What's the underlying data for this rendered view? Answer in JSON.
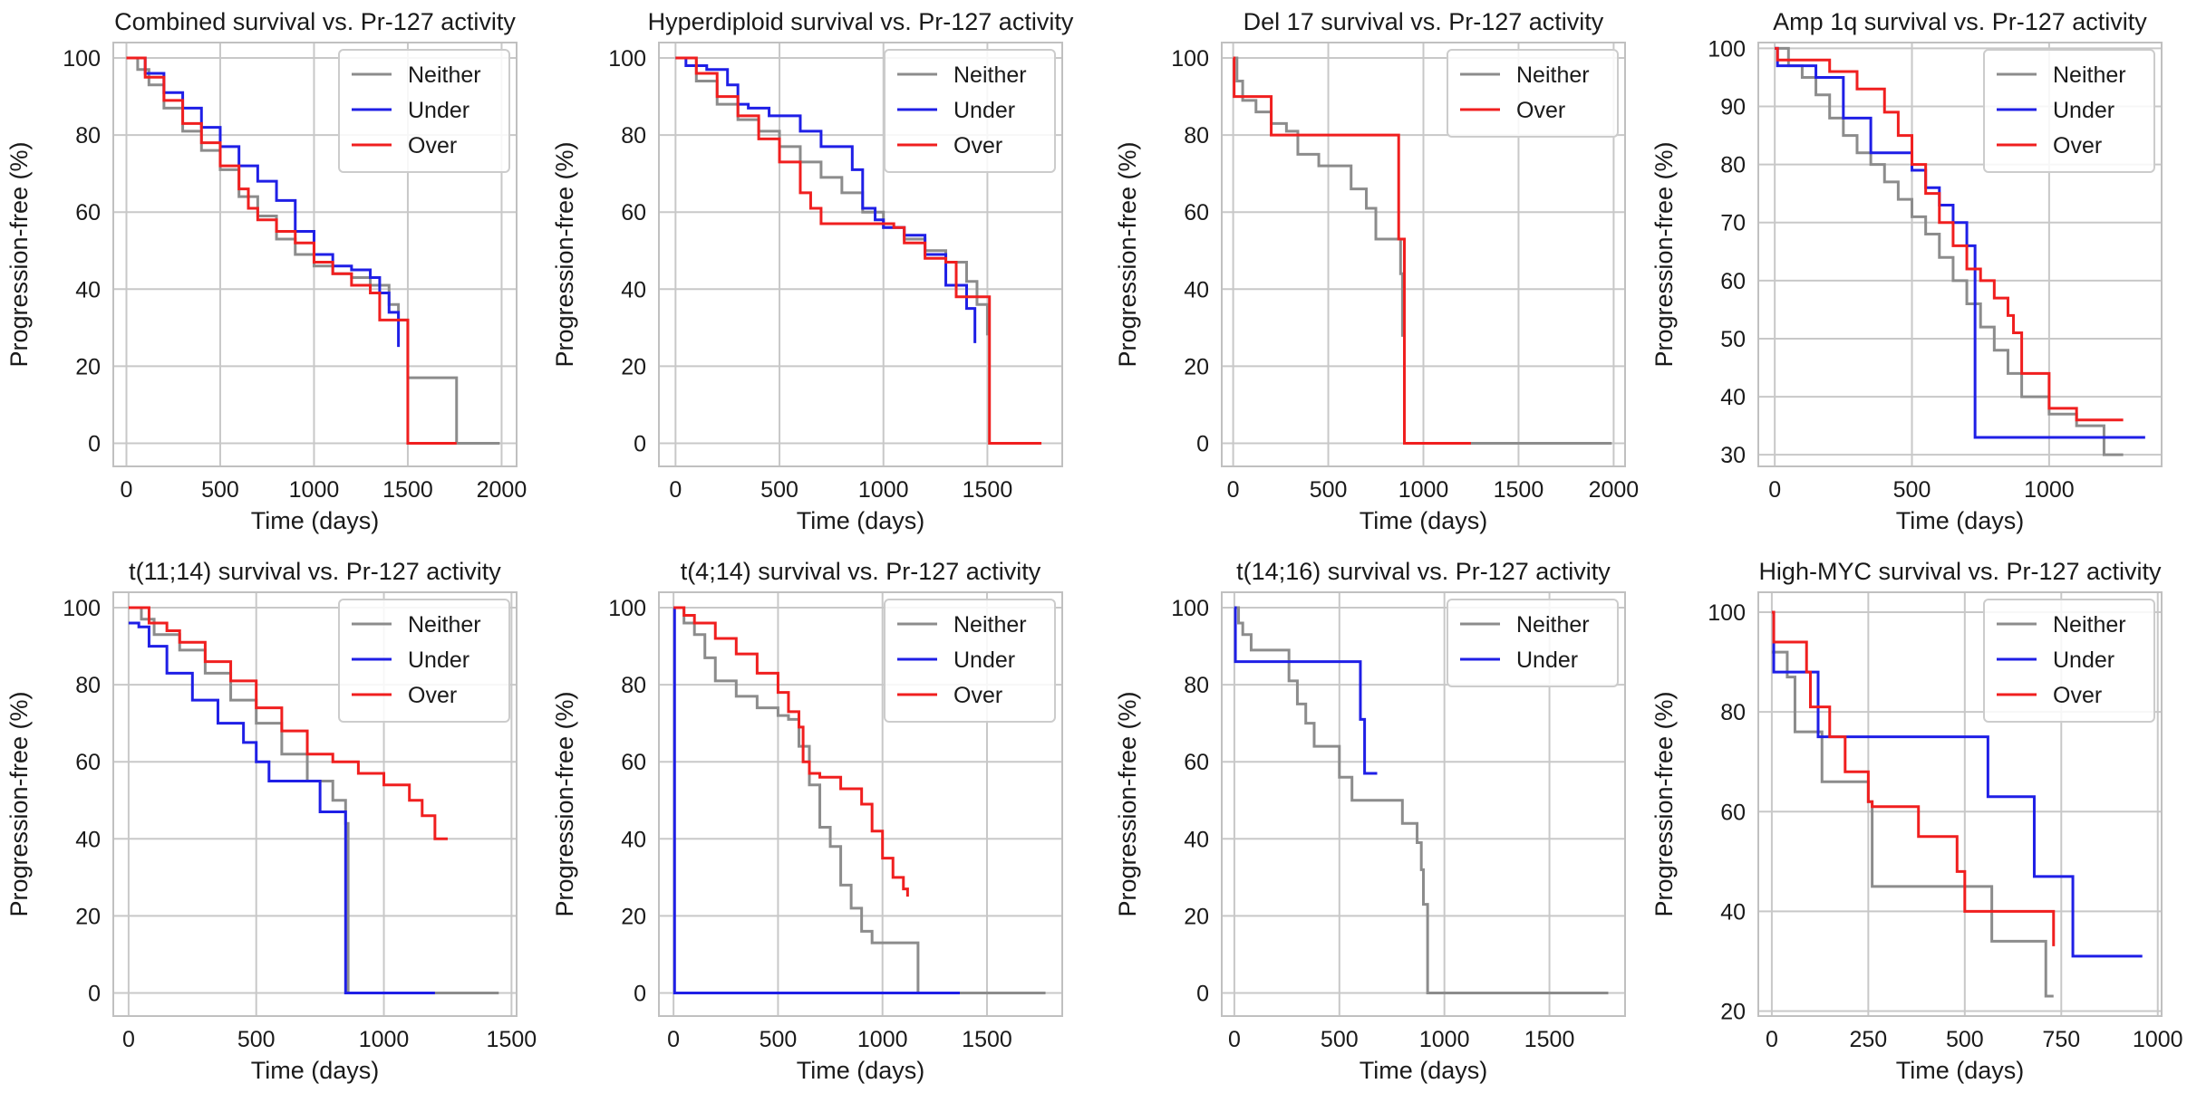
{
  "figure": {
    "title": ""
  },
  "colors": {
    "Neither": "#8c8c8c",
    "Under": "#1f1fe6",
    "Over": "#f01f1f",
    "grid": "#c8c8c8",
    "frame": "#c0c0c0"
  },
  "chart_data": [
    {
      "type": "line",
      "title": "Combined survival vs. Pr-127 activity",
      "xlabel": "Time (days)",
      "ylabel": "Progression-free (%)",
      "xlim": [
        -70,
        2080
      ],
      "ylim": [
        -6,
        104
      ],
      "xticks": [
        0,
        500,
        1000,
        1500,
        2000
      ],
      "yticks": [
        0,
        20,
        40,
        60,
        80,
        100
      ],
      "legend": "top-right",
      "series": [
        {
          "name": "Neither",
          "x": [
            0,
            60,
            120,
            200,
            300,
            400,
            500,
            600,
            700,
            800,
            900,
            1000,
            1100,
            1200,
            1300,
            1400,
            1450,
            1500,
            1500,
            1760,
            1760,
            1990
          ],
          "y": [
            100,
            97,
            93,
            87,
            81,
            76,
            71,
            64,
            59,
            53,
            49,
            46,
            44,
            43,
            41,
            36,
            32,
            28,
            17,
            17,
            0,
            0
          ]
        },
        {
          "name": "Under",
          "x": [
            0,
            100,
            200,
            300,
            400,
            500,
            600,
            700,
            800,
            900,
            1000,
            1100,
            1200,
            1300,
            1350,
            1400,
            1450,
            1450
          ],
          "y": [
            100,
            96,
            91,
            87,
            82,
            77,
            72,
            68,
            63,
            55,
            49,
            46,
            45,
            43,
            39,
            34,
            31,
            25
          ]
        },
        {
          "name": "Over",
          "x": [
            0,
            100,
            200,
            300,
            400,
            500,
            600,
            650,
            700,
            800,
            900,
            1000,
            1100,
            1200,
            1300,
            1350,
            1500,
            1500,
            1760
          ],
          "y": [
            100,
            95,
            89,
            83,
            78,
            72,
            66,
            61,
            58,
            55,
            52,
            47,
            44,
            41,
            39,
            32,
            32,
            0,
            0
          ]
        }
      ]
    },
    {
      "type": "line",
      "title": "Hyperdiploid survival vs. Pr-127 activity",
      "xlabel": "Time (days)",
      "ylabel": "Progression-free (%)",
      "xlim": [
        -80,
        1860
      ],
      "ylim": [
        -6,
        104
      ],
      "xticks": [
        0,
        500,
        1000,
        1500
      ],
      "yticks": [
        0,
        20,
        40,
        60,
        80,
        100
      ],
      "legend": "top-right",
      "series": [
        {
          "name": "Neither",
          "x": [
            0,
            100,
            200,
            300,
            400,
            500,
            600,
            700,
            800,
            900,
            1000,
            1100,
            1200,
            1300,
            1400,
            1450,
            1500,
            1500
          ],
          "y": [
            100,
            94,
            88,
            84,
            81,
            77,
            73,
            69,
            65,
            60,
            56,
            53,
            50,
            47,
            42,
            36,
            32,
            28
          ]
        },
        {
          "name": "Under",
          "x": [
            0,
            50,
            150,
            250,
            300,
            350,
            450,
            600,
            700,
            800,
            850,
            900,
            960,
            1000,
            1100,
            1200,
            1300,
            1400,
            1440,
            1440
          ],
          "y": [
            100,
            98,
            97,
            93,
            88,
            87,
            85,
            81,
            77,
            77,
            71,
            61,
            58,
            56,
            54,
            49,
            41,
            35,
            30,
            26
          ]
        },
        {
          "name": "Over",
          "x": [
            0,
            100,
            200,
            300,
            400,
            500,
            600,
            650,
            700,
            1000,
            1050,
            1100,
            1200,
            1250,
            1300,
            1350,
            1500,
            1510,
            1510,
            1760
          ],
          "y": [
            100,
            96,
            90,
            85,
            79,
            73,
            65,
            61,
            57,
            57,
            56,
            52,
            48,
            48,
            47,
            38,
            38,
            0,
            0,
            0
          ]
        }
      ]
    },
    {
      "type": "line",
      "title": "Del 17 survival vs. Pr-127 activity",
      "xlabel": "Time (days)",
      "ylabel": "Progression-free (%)",
      "xlim": [
        -60,
        2060
      ],
      "ylim": [
        -6,
        104
      ],
      "xticks": [
        0,
        500,
        1000,
        1500,
        2000
      ],
      "yticks": [
        0,
        20,
        40,
        60,
        80,
        100
      ],
      "legend": "top-right",
      "series": [
        {
          "name": "Neither",
          "x": [
            0,
            20,
            50,
            120,
            200,
            280,
            340,
            450,
            580,
            620,
            700,
            750,
            850,
            880,
            890,
            900,
            1000,
            1500,
            1990
          ],
          "y": [
            100,
            94,
            89,
            86,
            83,
            81,
            75,
            72,
            72,
            66,
            61,
            53,
            53,
            44,
            28,
            0,
            0,
            0,
            0
          ]
        },
        {
          "name": "Over",
          "x": [
            0,
            5,
            200,
            580,
            870,
            900,
            900,
            1250
          ],
          "y": [
            100,
            90,
            80,
            80,
            53,
            53,
            0,
            0
          ]
        }
      ]
    },
    {
      "type": "line",
      "title": "Amp 1q survival vs. Pr-127 activity",
      "xlabel": "Time (days)",
      "ylabel": "Progression-free (%)",
      "xlim": [
        -60,
        1410
      ],
      "ylim": [
        28,
        101
      ],
      "xticks": [
        0,
        500,
        1000
      ],
      "yticks": [
        30,
        40,
        50,
        60,
        70,
        80,
        90,
        100
      ],
      "legend": "top-right",
      "series": [
        {
          "name": "Neither",
          "x": [
            0,
            50,
            100,
            150,
            200,
            250,
            300,
            350,
            400,
            450,
            500,
            550,
            600,
            650,
            700,
            750,
            800,
            850,
            900,
            1000,
            1100,
            1200,
            1200,
            1270
          ],
          "y": [
            100,
            97,
            95,
            92,
            88,
            85,
            82,
            80,
            77,
            74,
            71,
            68,
            64,
            60,
            56,
            52,
            48,
            44,
            40,
            37,
            35,
            33,
            30,
            30
          ]
        },
        {
          "name": "Under",
          "x": [
            0,
            10,
            150,
            250,
            350,
            500,
            550,
            600,
            650,
            700,
            730,
            730,
            1350
          ],
          "y": [
            100,
            97,
            95,
            88,
            82,
            79,
            76,
            73,
            70,
            66,
            63,
            33,
            33
          ]
        },
        {
          "name": "Over",
          "x": [
            0,
            10,
            200,
            300,
            400,
            450,
            500,
            550,
            600,
            650,
            700,
            750,
            800,
            850,
            870,
            900,
            1000,
            1100,
            1270
          ],
          "y": [
            100,
            98,
            96,
            93,
            89,
            85,
            80,
            75,
            70,
            66,
            62,
            60,
            57,
            54,
            51,
            44,
            38,
            36,
            36
          ]
        }
      ]
    },
    {
      "type": "line",
      "title": "t(11;14) survival vs. Pr-127 activity",
      "xlabel": "Time (days)",
      "ylabel": "Progression-free (%)",
      "xlim": [
        -60,
        1520
      ],
      "ylim": [
        -6,
        104
      ],
      "xticks": [
        0,
        500,
        1000,
        1500
      ],
      "yticks": [
        0,
        20,
        40,
        60,
        80,
        100
      ],
      "legend": "top-right",
      "series": [
        {
          "name": "Neither",
          "x": [
            0,
            50,
            100,
            200,
            300,
            400,
            500,
            600,
            700,
            800,
            850,
            860,
            860,
            1200,
            1450
          ],
          "y": [
            100,
            97,
            93,
            89,
            83,
            76,
            70,
            62,
            55,
            50,
            44,
            40,
            0,
            0,
            0
          ]
        },
        {
          "name": "Under",
          "x": [
            0,
            40,
            80,
            150,
            250,
            350,
            450,
            500,
            550,
            750,
            850,
            850,
            1200
          ],
          "y": [
            96,
            95,
            90,
            83,
            76,
            70,
            65,
            60,
            55,
            47,
            47,
            0,
            0
          ]
        },
        {
          "name": "Over",
          "x": [
            0,
            80,
            150,
            200,
            300,
            400,
            500,
            600,
            700,
            800,
            900,
            1000,
            1100,
            1150,
            1200,
            1250
          ],
          "y": [
            100,
            96,
            94,
            91,
            86,
            81,
            74,
            68,
            62,
            60,
            57,
            54,
            50,
            46,
            40,
            40
          ]
        }
      ]
    },
    {
      "type": "line",
      "title": "t(4;14) survival vs. Pr-127 activity",
      "xlabel": "Time (days)",
      "ylabel": "Progression-free (%)",
      "xlim": [
        -70,
        1860
      ],
      "ylim": [
        -6,
        104
      ],
      "xticks": [
        0,
        500,
        1000,
        1500
      ],
      "yticks": [
        0,
        20,
        40,
        60,
        80,
        100
      ],
      "legend": "top-right",
      "series": [
        {
          "name": "Neither",
          "x": [
            0,
            50,
            100,
            150,
            200,
            300,
            400,
            500,
            550,
            600,
            650,
            700,
            750,
            800,
            850,
            900,
            950,
            1170,
            1170,
            1500,
            1780
          ],
          "y": [
            100,
            96,
            93,
            87,
            81,
            77,
            74,
            72,
            71,
            64,
            54,
            43,
            38,
            28,
            22,
            16,
            13,
            13,
            0,
            0,
            0
          ]
        },
        {
          "name": "Under",
          "x": [
            0,
            5,
            5,
            1370
          ],
          "y": [
            100,
            100,
            0,
            0
          ]
        },
        {
          "name": "Over",
          "x": [
            0,
            50,
            100,
            200,
            300,
            400,
            500,
            550,
            600,
            620,
            650,
            700,
            800,
            900,
            950,
            1000,
            1050,
            1100,
            1120
          ],
          "y": [
            100,
            98,
            96,
            92,
            88,
            83,
            78,
            73,
            69,
            60,
            57,
            56,
            53,
            49,
            42,
            35,
            30,
            27,
            25
          ]
        }
      ]
    },
    {
      "type": "line",
      "title": "t(14;16) survival vs. Pr-127 activity",
      "xlabel": "Time (days)",
      "ylabel": "Progression-free (%)",
      "xlim": [
        -60,
        1860
      ],
      "ylim": [
        -6,
        104
      ],
      "xticks": [
        0,
        500,
        1000,
        1500
      ],
      "yticks": [
        0,
        20,
        40,
        60,
        80,
        100
      ],
      "legend": "top-right",
      "series": [
        {
          "name": "Neither",
          "x": [
            0,
            20,
            40,
            80,
            260,
            300,
            340,
            380,
            420,
            500,
            560,
            600,
            800,
            870,
            890,
            900,
            920,
            920,
            1780
          ],
          "y": [
            100,
            96,
            93,
            89,
            81,
            75,
            70,
            64,
            64,
            56,
            50,
            50,
            44,
            39,
            32,
            23,
            16,
            0,
            0
          ]
        },
        {
          "name": "Under",
          "x": [
            0,
            5,
            560,
            600,
            620,
            680
          ],
          "y": [
            100,
            86,
            86,
            71,
            57,
            57
          ]
        }
      ]
    },
    {
      "type": "line",
      "title": "High-MYC survival vs. Pr-127 activity",
      "xlabel": "Time (days)",
      "ylabel": "Progression-free (%)",
      "xlim": [
        -35,
        1010
      ],
      "ylim": [
        19,
        104
      ],
      "xticks": [
        0,
        250,
        500,
        750,
        1000
      ],
      "yticks": [
        20,
        40,
        60,
        80,
        100
      ],
      "legend": "top-right",
      "series": [
        {
          "name": "Neither",
          "x": [
            0,
            40,
            60,
            130,
            250,
            260,
            560,
            570,
            690,
            710,
            730
          ],
          "y": [
            92,
            87,
            76,
            66,
            62,
            45,
            45,
            34,
            34,
            23,
            23
          ]
        },
        {
          "name": "Under",
          "x": [
            0,
            5,
            60,
            120,
            550,
            560,
            660,
            680,
            770,
            780,
            960
          ],
          "y": [
            100,
            88,
            88,
            75,
            75,
            63,
            63,
            47,
            47,
            31,
            31
          ]
        },
        {
          "name": "Over",
          "x": [
            0,
            5,
            90,
            100,
            150,
            190,
            250,
            260,
            380,
            480,
            500,
            730
          ],
          "y": [
            100,
            94,
            88,
            81,
            75,
            68,
            62,
            61,
            55,
            48,
            40,
            33
          ]
        }
      ]
    }
  ]
}
